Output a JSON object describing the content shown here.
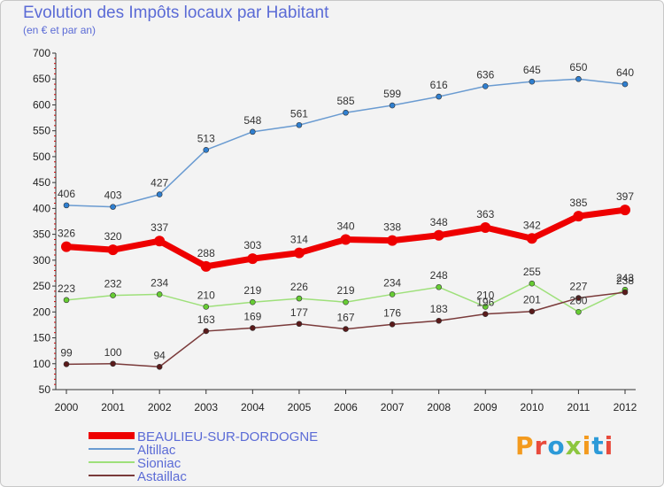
{
  "chart_data": {
    "type": "line",
    "title": "Evolution des Impôts locaux par Habitant",
    "subtitle": "(en € et par an)",
    "xlabel": "",
    "ylabel": "",
    "ylim": [
      50,
      700
    ],
    "yticks": [
      50,
      100,
      150,
      200,
      250,
      300,
      350,
      400,
      450,
      500,
      550,
      600,
      650,
      700
    ],
    "x": [
      2000,
      2001,
      2002,
      2003,
      2004,
      2005,
      2006,
      2007,
      2008,
      2009,
      2010,
      2011,
      2012
    ],
    "grid": false,
    "legend_position": "bottom-left",
    "series": [
      {
        "name": "BEAULIEU-SUR-DORDOGNE",
        "color": "#ee0000",
        "marker": "#ee0000",
        "width": 7,
        "radius": 6,
        "values": [
          326,
          320,
          337,
          288,
          303,
          314,
          340,
          338,
          348,
          363,
          342,
          385,
          397
        ]
      },
      {
        "name": "Altillac",
        "color": "#6a9bd1",
        "marker": "#2f7fd0",
        "width": 1.5,
        "radius": 3,
        "values": [
          406,
          403,
          427,
          513,
          548,
          561,
          585,
          599,
          616,
          636,
          645,
          650,
          640
        ]
      },
      {
        "name": "Sioniac",
        "color": "#9ee07a",
        "marker": "#66cc33",
        "width": 1.5,
        "radius": 3,
        "values": [
          223,
          232,
          234,
          210,
          219,
          226,
          219,
          234,
          248,
          210,
          255,
          200,
          243
        ]
      },
      {
        "name": "Astaillac",
        "color": "#7a3a3a",
        "marker": "#5a1a1a",
        "width": 1.5,
        "radius": 3,
        "values": [
          99,
          100,
          94,
          163,
          169,
          177,
          167,
          176,
          183,
          196,
          201,
          227,
          238
        ]
      }
    ]
  },
  "logo": {
    "text": "Proxiti"
  }
}
